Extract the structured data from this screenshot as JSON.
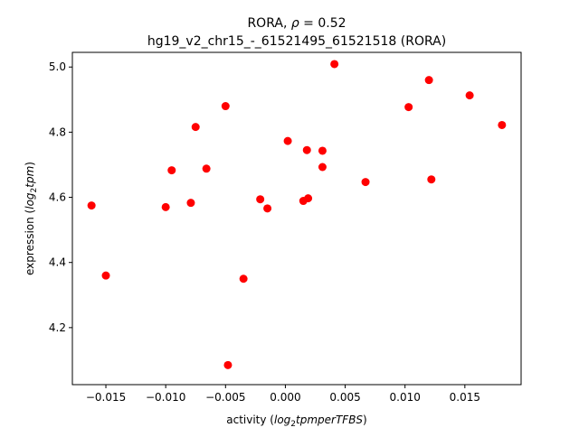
{
  "chart_data": {
    "type": "scatter",
    "title_line1_prefix": "RORA, ",
    "title_line1_rho": "ρ",
    "title_line1_suffix": " = 0.52",
    "title_line2": "hg19_v2_chr15_-_61521495_61521518 (RORA)",
    "xlabel_prefix": "activity (",
    "xlabel_math": "log",
    "xlabel_sub": "2",
    "xlabel_math_rest": "tpmperTFBS",
    "xlabel_suffix": ")",
    "ylabel_prefix": "expression (",
    "ylabel_math": "log",
    "ylabel_sub": "2",
    "ylabel_math_rest": "tpm",
    "ylabel_suffix": ")",
    "xlim": [
      -0.0178,
      0.0197
    ],
    "ylim": [
      4.025,
      5.045
    ],
    "xticks": [
      -0.015,
      -0.01,
      -0.005,
      0.0,
      0.005,
      0.01,
      0.015
    ],
    "xtick_labels": [
      "−0.015",
      "−0.010",
      "−0.005",
      "0.000",
      "0.005",
      "0.010",
      "0.015"
    ],
    "yticks": [
      4.2,
      4.4,
      4.6,
      4.8,
      5.0
    ],
    "ytick_labels": [
      "4.2",
      "4.4",
      "4.6",
      "4.8",
      "5.0"
    ],
    "marker_color": "#ff0000",
    "points": [
      {
        "x": -0.0162,
        "y": 4.575
      },
      {
        "x": -0.015,
        "y": 4.36
      },
      {
        "x": -0.01,
        "y": 4.57
      },
      {
        "x": -0.0095,
        "y": 4.683
      },
      {
        "x": -0.0079,
        "y": 4.583
      },
      {
        "x": -0.0075,
        "y": 4.816
      },
      {
        "x": -0.0066,
        "y": 4.688
      },
      {
        "x": -0.005,
        "y": 4.88
      },
      {
        "x": -0.0048,
        "y": 4.085
      },
      {
        "x": -0.0035,
        "y": 4.35
      },
      {
        "x": -0.0021,
        "y": 4.594
      },
      {
        "x": -0.0015,
        "y": 4.566
      },
      {
        "x": 0.0002,
        "y": 4.773
      },
      {
        "x": 0.0015,
        "y": 4.589
      },
      {
        "x": 0.0018,
        "y": 4.745
      },
      {
        "x": 0.0019,
        "y": 4.597
      },
      {
        "x": 0.0031,
        "y": 4.743
      },
      {
        "x": 0.0031,
        "y": 4.693
      },
      {
        "x": 0.0041,
        "y": 5.009
      },
      {
        "x": 0.0067,
        "y": 4.647
      },
      {
        "x": 0.0103,
        "y": 4.877
      },
      {
        "x": 0.012,
        "y": 4.96
      },
      {
        "x": 0.0122,
        "y": 4.655
      },
      {
        "x": 0.0154,
        "y": 4.913
      },
      {
        "x": 0.0181,
        "y": 4.822
      }
    ]
  }
}
